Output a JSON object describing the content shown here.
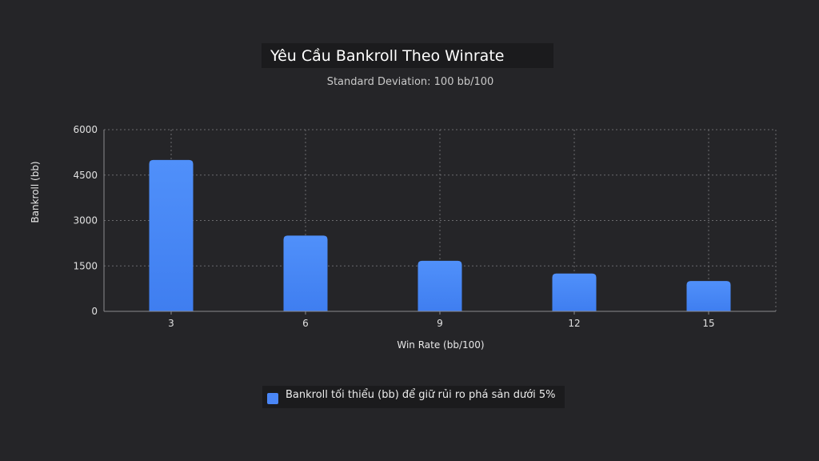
{
  "chart_data": {
    "type": "bar",
    "title": "Yêu Cầu Bankroll Theo Winrate",
    "subtitle": "Standard Deviation: 100 bb/100",
    "xlabel": "Win Rate (bb/100)",
    "ylabel": "Bankroll (bb)",
    "categories": [
      "3",
      "6",
      "9",
      "12",
      "15"
    ],
    "series": [
      {
        "name": "Bankroll tối thiểu (bb) để giữ rủi ro phá sản dưới 5%",
        "values": [
          5000,
          2500,
          1667,
          1250,
          1000
        ],
        "color": "#4a86f6"
      }
    ],
    "ylim": [
      0,
      6000
    ],
    "yticks": [
      "0",
      "1500",
      "3000",
      "4500",
      "6000"
    ],
    "grid": true,
    "legend_position": "bottom"
  }
}
